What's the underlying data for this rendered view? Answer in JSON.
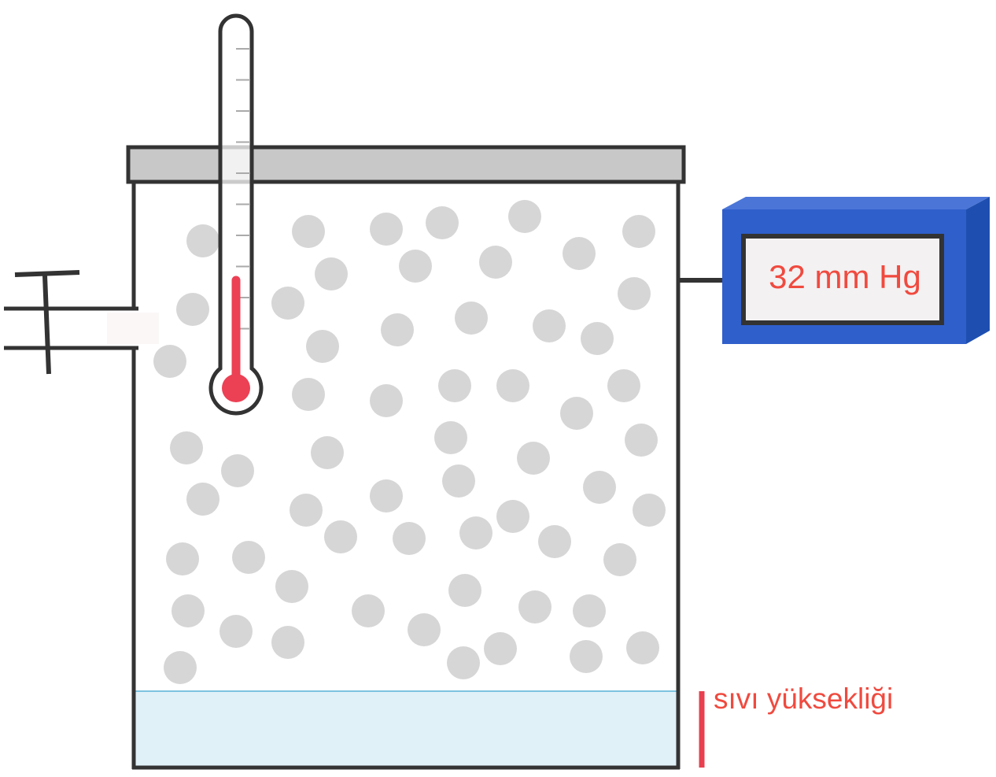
{
  "gauge": {
    "reading": "32 mm Hg",
    "body_color": "#2f5fcb",
    "body_side_color": "#1e4fb0",
    "screen_color": "#f3f1f2",
    "text_color": "#f04a3f"
  },
  "liquid_label": {
    "text": "sıvı yüksekliği",
    "color": "#f04a3f",
    "marker_color": "#e8404f"
  },
  "thermometer": {
    "fluid_color": "#ec4054"
  },
  "container": {
    "liquid_color": "#e1f1f8",
    "liquid_surface_color": "#7cc3e0",
    "lid_color": "#c8c8c8",
    "wall_color": "#333333"
  },
  "gas": {
    "particle_color": "#d6d6d6",
    "particle_count": 70
  }
}
